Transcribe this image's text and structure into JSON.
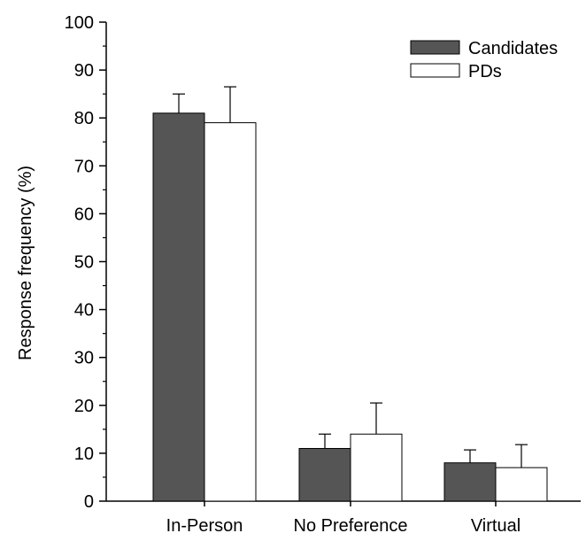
{
  "chart_data": {
    "type": "bar",
    "title": "",
    "xlabel": "",
    "ylabel": "Response frequency (%)",
    "ylim": [
      0,
      100
    ],
    "yticks": [
      0,
      10,
      20,
      30,
      40,
      50,
      60,
      70,
      80,
      90,
      100
    ],
    "categories": [
      "In-Person",
      "No Preference",
      "Virtual"
    ],
    "series": [
      {
        "name": "Candidates",
        "color": "#555555",
        "values": [
          81,
          11,
          8
        ],
        "errors": [
          4,
          3,
          2.7
        ]
      },
      {
        "name": "PDs",
        "color": "#ffffff",
        "values": [
          79,
          14,
          7
        ],
        "errors": [
          7.5,
          6.5,
          4.8
        ]
      }
    ],
    "legend": {
      "position": "top-right"
    },
    "grid": false
  }
}
